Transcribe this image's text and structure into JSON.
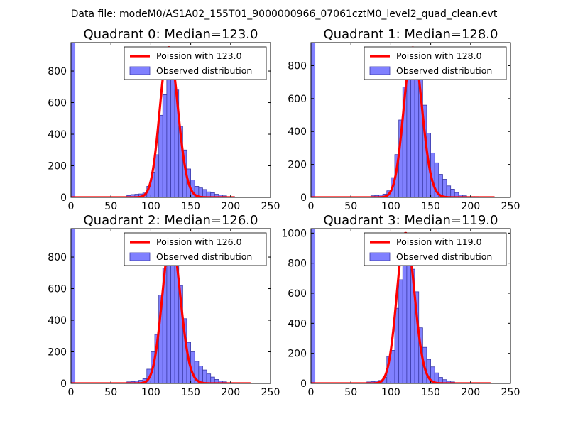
{
  "suptitle": "Data file: modeM0/AS1A02_155T01_9000000966_07061cztM0_level2_quad_clean.evt",
  "colors": {
    "hist_fill": "#8080ff",
    "hist_edge": "#3a3aa8",
    "poisson_line": "#ff0000",
    "axes": "#000000"
  },
  "chart_data": [
    {
      "type": "bar",
      "title": "Quadrant 0: Median=123.0",
      "xlim": [
        0,
        250
      ],
      "ylim": [
        0,
        980
      ],
      "xticks": [
        "0",
        "50",
        "100",
        "150",
        "200",
        "250"
      ],
      "yticks": [
        "0",
        "200",
        "400",
        "600",
        "800"
      ],
      "legend": {
        "line_label": "Poission with 123.0",
        "hist_label": "Observed distribution",
        "position": "upper right"
      },
      "bin_width": 5,
      "bins": [
        [
          0,
          980
        ],
        [
          70,
          12
        ],
        [
          75,
          18
        ],
        [
          80,
          20
        ],
        [
          85,
          22
        ],
        [
          90,
          28
        ],
        [
          95,
          70
        ],
        [
          100,
          160
        ],
        [
          105,
          270
        ],
        [
          110,
          520
        ],
        [
          115,
          650
        ],
        [
          120,
          890
        ],
        [
          125,
          830
        ],
        [
          130,
          680
        ],
        [
          135,
          450
        ],
        [
          140,
          300
        ],
        [
          145,
          180
        ],
        [
          150,
          110
        ],
        [
          155,
          70
        ],
        [
          160,
          60
        ],
        [
          165,
          50
        ],
        [
          170,
          35
        ],
        [
          175,
          30
        ],
        [
          180,
          20
        ],
        [
          185,
          15
        ],
        [
          190,
          10
        ],
        [
          195,
          5
        ],
        [
          200,
          5
        ]
      ],
      "poisson": {
        "mean": 123.0,
        "peak": 950,
        "x_range": [
          0,
          205
        ]
      }
    },
    {
      "type": "bar",
      "title": "Quadrant 1: Median=128.0",
      "xlim": [
        0,
        250
      ],
      "ylim": [
        0,
        940
      ],
      "xticks": [
        "0",
        "50",
        "100",
        "150",
        "200",
        "250"
      ],
      "yticks": [
        "0",
        "200",
        "400",
        "600",
        "800"
      ],
      "legend": {
        "line_label": "Poission with 128.0",
        "hist_label": "Observed distribution",
        "position": "upper right"
      },
      "bin_width": 5,
      "bins": [
        [
          0,
          940
        ],
        [
          75,
          10
        ],
        [
          80,
          12
        ],
        [
          85,
          15
        ],
        [
          90,
          20
        ],
        [
          95,
          40
        ],
        [
          100,
          120
        ],
        [
          105,
          260
        ],
        [
          110,
          470
        ],
        [
          115,
          670
        ],
        [
          120,
          780
        ],
        [
          125,
          880
        ],
        [
          130,
          840
        ],
        [
          135,
          740
        ],
        [
          140,
          560
        ],
        [
          145,
          390
        ],
        [
          150,
          270
        ],
        [
          155,
          210
        ],
        [
          160,
          140
        ],
        [
          165,
          110
        ],
        [
          170,
          70
        ],
        [
          175,
          50
        ],
        [
          180,
          30
        ],
        [
          185,
          15
        ],
        [
          190,
          10
        ],
        [
          195,
          5
        ],
        [
          200,
          5
        ],
        [
          205,
          5
        ]
      ],
      "poisson": {
        "mean": 128.0,
        "peak": 910,
        "x_range": [
          0,
          230
        ]
      }
    },
    {
      "type": "bar",
      "title": "Quadrant 2: Median=126.0",
      "xlim": [
        0,
        250
      ],
      "ylim": [
        0,
        980
      ],
      "xticks": [
        "0",
        "50",
        "100",
        "150",
        "200",
        "250"
      ],
      "yticks": [
        "0",
        "200",
        "400",
        "600",
        "800"
      ],
      "legend": {
        "line_label": "Poission with 126.0",
        "hist_label": "Observed distribution",
        "position": "upper right"
      },
      "bin_width": 5,
      "bins": [
        [
          0,
          980
        ],
        [
          70,
          10
        ],
        [
          75,
          12
        ],
        [
          80,
          15
        ],
        [
          85,
          20
        ],
        [
          90,
          30
        ],
        [
          95,
          90
        ],
        [
          100,
          200
        ],
        [
          105,
          310
        ],
        [
          110,
          560
        ],
        [
          115,
          730
        ],
        [
          120,
          930
        ],
        [
          125,
          890
        ],
        [
          130,
          750
        ],
        [
          135,
          620
        ],
        [
          140,
          410
        ],
        [
          145,
          260
        ],
        [
          150,
          200
        ],
        [
          155,
          140
        ],
        [
          160,
          110
        ],
        [
          165,
          85
        ],
        [
          170,
          60
        ],
        [
          175,
          40
        ],
        [
          180,
          25
        ],
        [
          185,
          15
        ],
        [
          190,
          10
        ],
        [
          195,
          5
        ],
        [
          200,
          5
        ]
      ],
      "poisson": {
        "mean": 126.0,
        "peak": 920,
        "x_range": [
          0,
          225
        ]
      }
    },
    {
      "type": "bar",
      "title": "Quadrant 3: Median=119.0",
      "xlim": [
        0,
        250
      ],
      "ylim": [
        0,
        1030
      ],
      "xticks": [
        "0",
        "50",
        "100",
        "150",
        "200",
        "250"
      ],
      "yticks": [
        "0",
        "200",
        "400",
        "600",
        "800",
        "1000"
      ],
      "legend": {
        "line_label": "Poission with 119.0",
        "hist_label": "Observed distribution",
        "position": "upper right"
      },
      "bin_width": 5,
      "bins": [
        [
          0,
          1030
        ],
        [
          70,
          10
        ],
        [
          75,
          12
        ],
        [
          80,
          15
        ],
        [
          85,
          20
        ],
        [
          90,
          40
        ],
        [
          95,
          180
        ],
        [
          100,
          220
        ],
        [
          105,
          500
        ],
        [
          110,
          690
        ],
        [
          115,
          900
        ],
        [
          120,
          950
        ],
        [
          125,
          760
        ],
        [
          130,
          610
        ],
        [
          135,
          370
        ],
        [
          140,
          240
        ],
        [
          145,
          160
        ],
        [
          150,
          110
        ],
        [
          155,
          70
        ],
        [
          160,
          40
        ],
        [
          165,
          25
        ],
        [
          170,
          15
        ],
        [
          175,
          10
        ],
        [
          180,
          5
        ],
        [
          185,
          5
        ]
      ],
      "poisson": {
        "mean": 119.0,
        "peak": 1000,
        "x_range": [
          0,
          225
        ]
      }
    }
  ]
}
